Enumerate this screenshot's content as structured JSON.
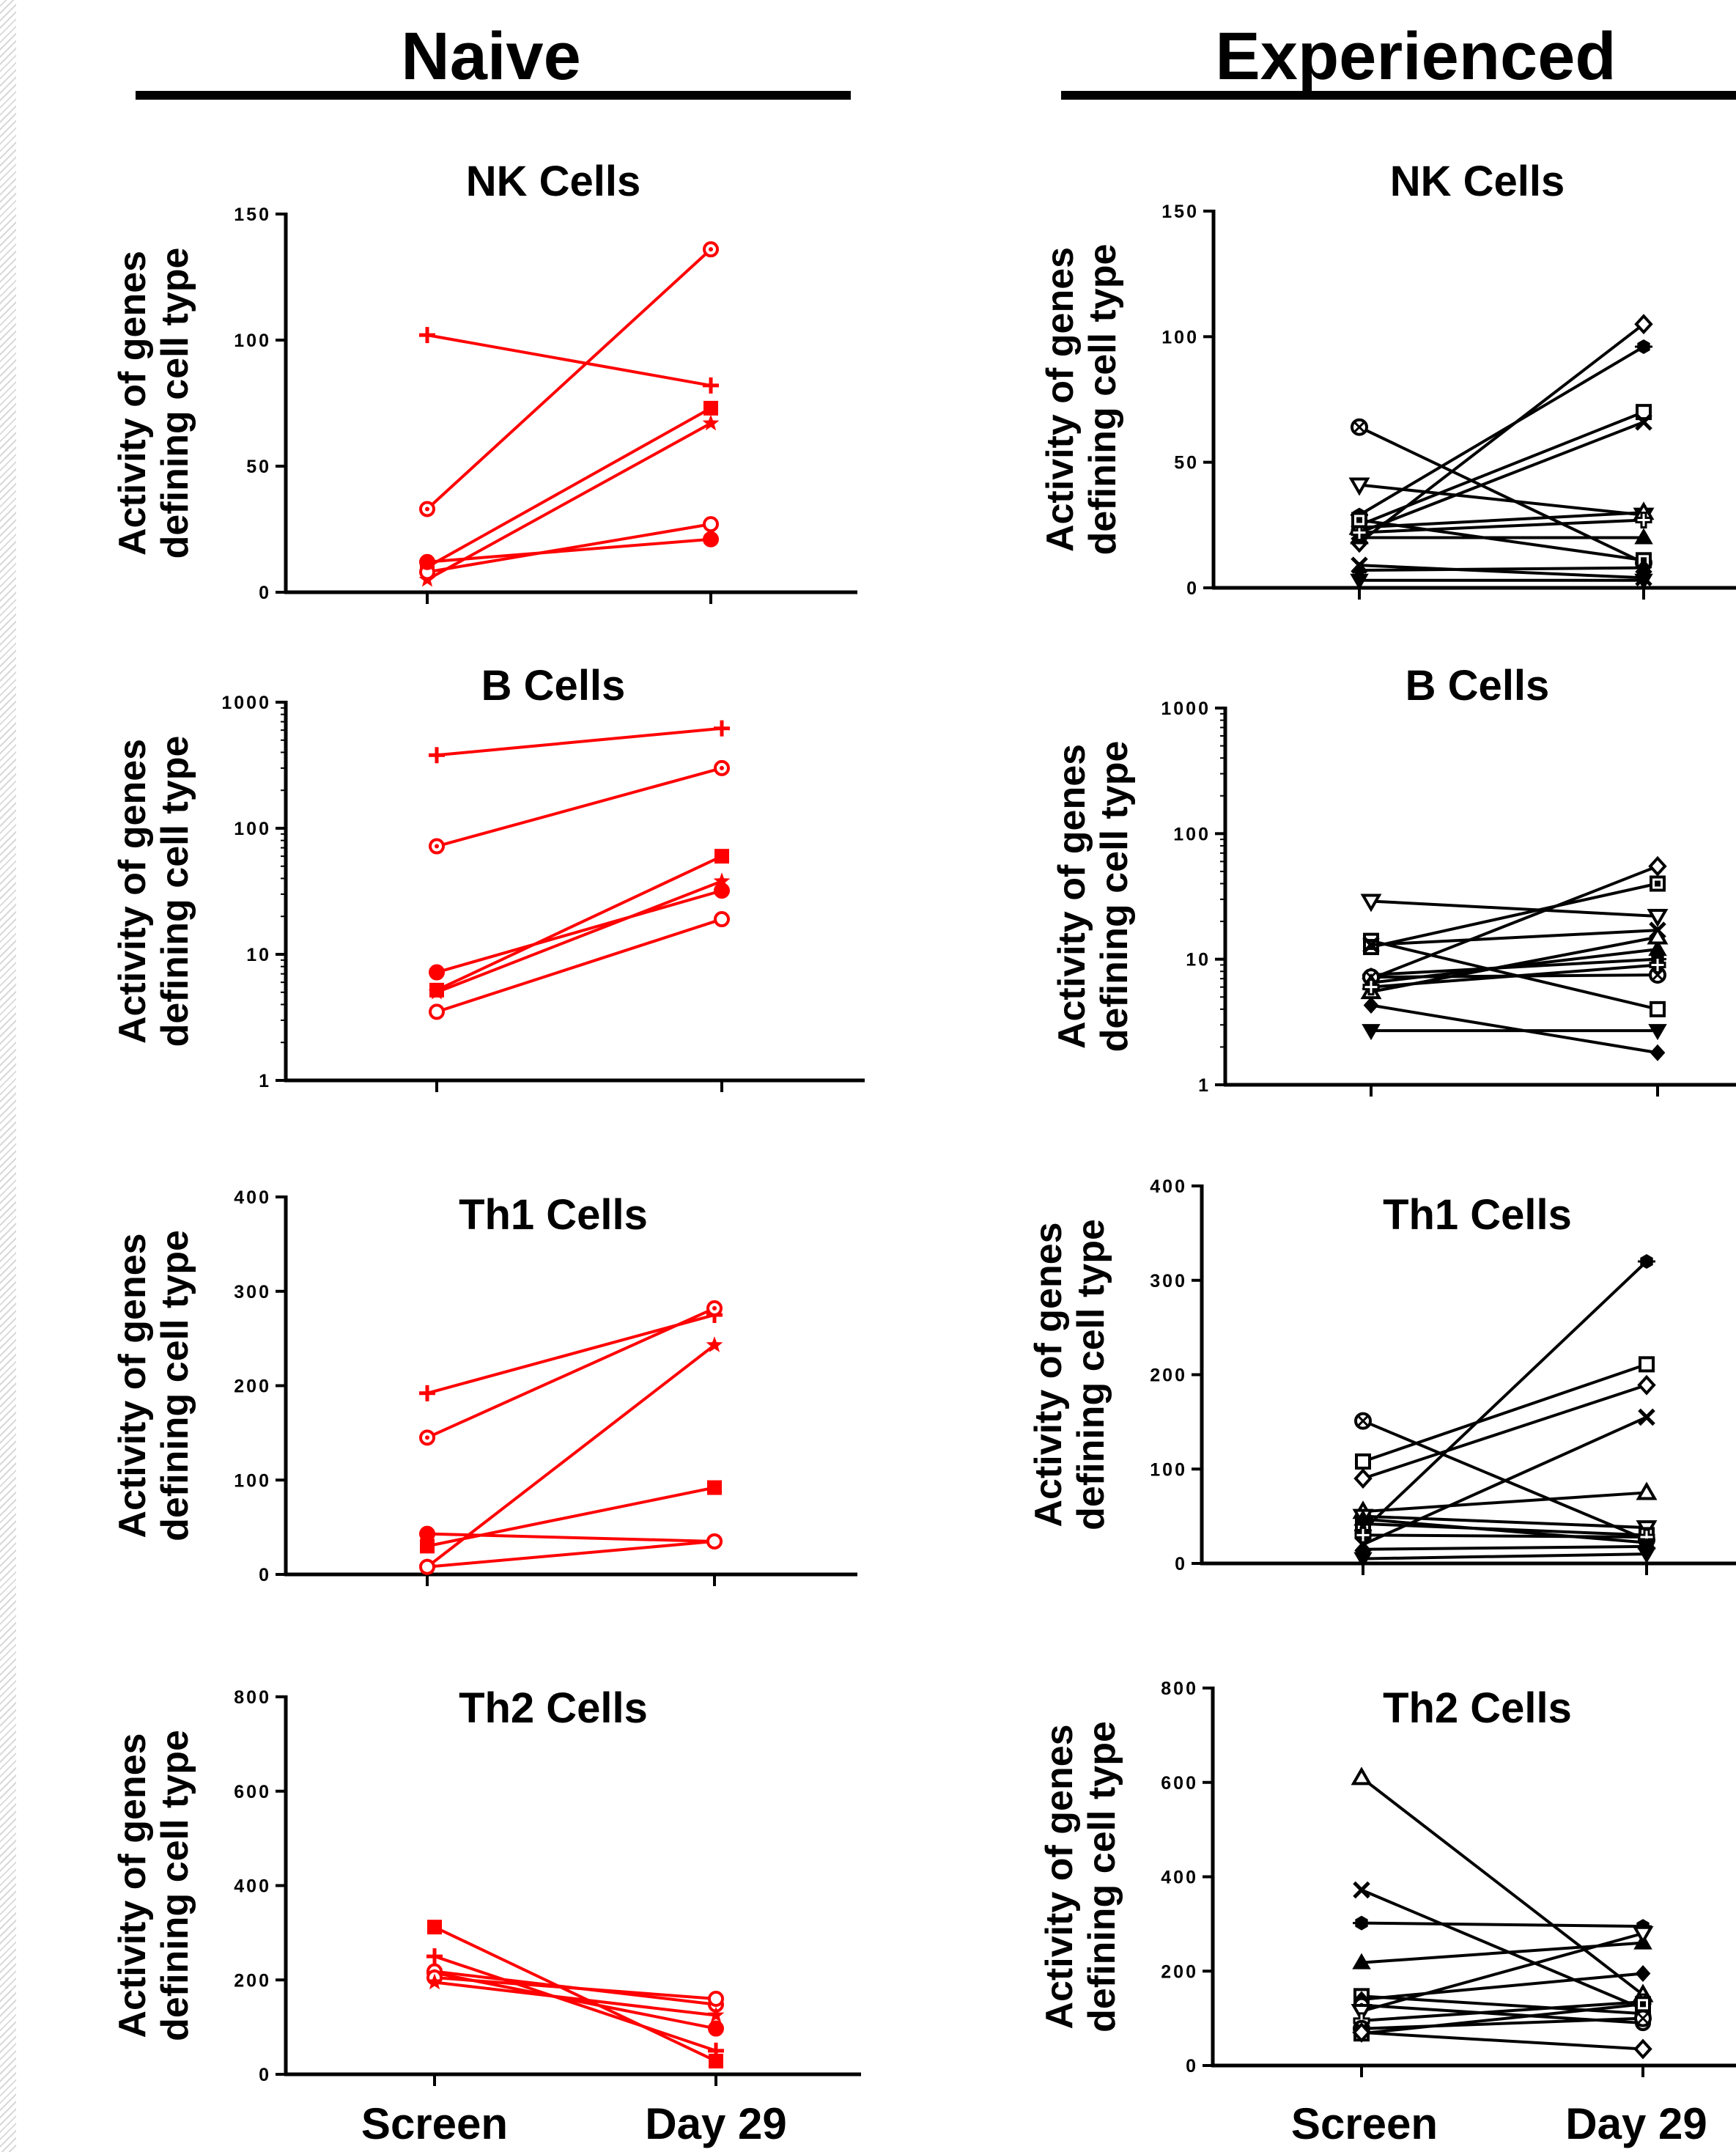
{
  "groups": {
    "naive": {
      "label": "Naive"
    },
    "experienced": {
      "label": "Experienced"
    }
  },
  "axis_label": {
    "line1": "Activity of genes",
    "line2": "defining cell type"
  },
  "x_categories": [
    "Screen",
    "Day 29"
  ],
  "colors": {
    "naive": "#ff0000",
    "experienced": "#000000"
  },
  "chart_data": [
    {
      "type": "line",
      "group": "naive",
      "title": "NK Cells",
      "scale": "linear",
      "ylim": [
        0,
        150
      ],
      "yticks": [
        0,
        50,
        100,
        150
      ],
      "categories": [
        "Screen",
        "Day 29"
      ],
      "series": [
        {
          "marker": "plus",
          "values": [
            102,
            82
          ]
        },
        {
          "marker": "circle-dot-open",
          "values": [
            33,
            136
          ]
        },
        {
          "marker": "square-filled",
          "values": [
            10,
            73
          ]
        },
        {
          "marker": "star",
          "values": [
            5,
            67
          ]
        },
        {
          "marker": "circle-open",
          "values": [
            8,
            27
          ]
        },
        {
          "marker": "circle-filled",
          "values": [
            12,
            21
          ]
        }
      ]
    },
    {
      "type": "line",
      "group": "experienced",
      "title": "NK Cells",
      "scale": "linear",
      "ylim": [
        0,
        150
      ],
      "yticks": [
        0,
        50,
        100,
        150
      ],
      "categories": [
        "Screen",
        "Day 29"
      ],
      "series": [
        {
          "marker": "circle-x",
          "values": [
            64,
            10
          ]
        },
        {
          "marker": "triangle-down-open",
          "values": [
            41,
            29
          ]
        },
        {
          "marker": "diamond-open",
          "values": [
            18,
            105
          ]
        },
        {
          "marker": "hex-filled",
          "values": [
            29,
            96
          ]
        },
        {
          "marker": "square-open",
          "values": [
            25,
            70
          ]
        },
        {
          "marker": "x",
          "values": [
            22,
            66
          ]
        },
        {
          "marker": "triangle-open",
          "values": [
            24,
            30
          ]
        },
        {
          "marker": "triangle-filled",
          "values": [
            20,
            20
          ]
        },
        {
          "marker": "plus-open",
          "values": [
            22,
            27
          ]
        },
        {
          "marker": "square-dot-open",
          "values": [
            27,
            11
          ]
        },
        {
          "marker": "x",
          "values": [
            9,
            4
          ]
        },
        {
          "marker": "triangle-down-filled",
          "values": [
            3,
            3
          ]
        },
        {
          "marker": "diamond-filled",
          "values": [
            7,
            8
          ]
        }
      ]
    },
    {
      "type": "line",
      "group": "naive",
      "title": "B Cells",
      "scale": "log",
      "ylim": [
        1,
        1000
      ],
      "yticks": [
        1,
        10,
        100,
        1000
      ],
      "categories": [
        "Screen",
        "Day 29"
      ],
      "series": [
        {
          "marker": "plus",
          "values": [
            380,
            620
          ]
        },
        {
          "marker": "circle-dot-open",
          "values": [
            72,
            300
          ]
        },
        {
          "marker": "square-filled",
          "values": [
            5.2,
            60
          ]
        },
        {
          "marker": "star",
          "values": [
            5.0,
            38
          ]
        },
        {
          "marker": "circle-filled",
          "values": [
            7.2,
            32
          ]
        },
        {
          "marker": "circle-open",
          "values": [
            3.5,
            19
          ]
        }
      ]
    },
    {
      "type": "line",
      "group": "experienced",
      "title": "B Cells",
      "scale": "log",
      "ylim": [
        1,
        1000
      ],
      "yticks": [
        1,
        10,
        100,
        1000
      ],
      "categories": [
        "Screen",
        "Day 29"
      ],
      "series": [
        {
          "marker": "triangle-down-open",
          "values": [
            29,
            22
          ]
        },
        {
          "marker": "square-open",
          "values": [
            14,
            4
          ]
        },
        {
          "marker": "square-dot-open",
          "values": [
            12.5,
            40
          ]
        },
        {
          "marker": "x",
          "values": [
            13,
            17
          ]
        },
        {
          "marker": "diamond-open",
          "values": [
            7,
            55
          ]
        },
        {
          "marker": "hex-filled",
          "values": [
            7.5,
            10
          ]
        },
        {
          "marker": "circle-x",
          "values": [
            7.2,
            7.5
          ]
        },
        {
          "marker": "triangle-filled",
          "values": [
            6.5,
            12
          ]
        },
        {
          "marker": "triangle-open",
          "values": [
            5.5,
            15
          ]
        },
        {
          "marker": "plus-open",
          "values": [
            6,
            9
          ]
        },
        {
          "marker": "diamond-filled",
          "values": [
            4.3,
            1.8
          ]
        },
        {
          "marker": "triangle-down-filled",
          "values": [
            2.7,
            2.7
          ]
        }
      ]
    },
    {
      "type": "line",
      "group": "naive",
      "title": "Th1 Cells",
      "scale": "linear",
      "ylim": [
        0,
        400
      ],
      "yticks": [
        0,
        100,
        200,
        300,
        400
      ],
      "categories": [
        "Screen",
        "Day 29"
      ],
      "series": [
        {
          "marker": "plus",
          "values": [
            192,
            275
          ]
        },
        {
          "marker": "circle-dot-open",
          "values": [
            145,
            282
          ]
        },
        {
          "marker": "star",
          "values": [
            8,
            243
          ]
        },
        {
          "marker": "square-filled",
          "values": [
            30,
            92
          ]
        },
        {
          "marker": "circle-filled",
          "values": [
            43,
            35
          ]
        },
        {
          "marker": "circle-open",
          "values": [
            8,
            35
          ]
        }
      ]
    },
    {
      "type": "line",
      "group": "experienced",
      "title": "Th1 Cells",
      "scale": "linear",
      "ylim": [
        0,
        400
      ],
      "yticks": [
        0,
        100,
        200,
        300,
        400
      ],
      "categories": [
        "Screen",
        "Day 29"
      ],
      "series": [
        {
          "marker": "circle-x",
          "values": [
            151,
            25
          ]
        },
        {
          "marker": "square-open",
          "values": [
            108,
            211
          ]
        },
        {
          "marker": "diamond-open",
          "values": [
            90,
            189
          ]
        },
        {
          "marker": "x",
          "values": [
            20,
            155
          ]
        },
        {
          "marker": "hex-filled",
          "values": [
            35,
            320
          ]
        },
        {
          "marker": "triangle-open",
          "values": [
            55,
            75
          ]
        },
        {
          "marker": "triangle-down-open",
          "values": [
            50,
            38
          ]
        },
        {
          "marker": "square-dot-open",
          "values": [
            42,
            30
          ]
        },
        {
          "marker": "triangle-filled",
          "values": [
            47,
            22
          ]
        },
        {
          "marker": "plus-open",
          "values": [
            30,
            28
          ]
        },
        {
          "marker": "diamond-filled",
          "values": [
            15,
            18
          ]
        },
        {
          "marker": "triangle-down-filled",
          "values": [
            5,
            10
          ]
        }
      ]
    },
    {
      "type": "line",
      "group": "naive",
      "title": "Th2 Cells",
      "scale": "linear",
      "ylim": [
        0,
        800
      ],
      "yticks": [
        0,
        200,
        400,
        600,
        800
      ],
      "categories": [
        "Screen",
        "Day 29"
      ],
      "series": [
        {
          "marker": "square-filled",
          "values": [
            312,
            28
          ]
        },
        {
          "marker": "plus",
          "values": [
            250,
            50
          ]
        },
        {
          "marker": "circle-filled",
          "values": [
            215,
            97
          ]
        },
        {
          "marker": "circle-dot-open",
          "values": [
            218,
            148
          ]
        },
        {
          "marker": "circle-open",
          "values": [
            205,
            160
          ]
        },
        {
          "marker": "star",
          "values": [
            195,
            125
          ]
        }
      ]
    },
    {
      "type": "line",
      "group": "experienced",
      "title": "Th2 Cells",
      "scale": "linear",
      "ylim": [
        0,
        800
      ],
      "yticks": [
        0,
        200,
        400,
        600,
        800
      ],
      "categories": [
        "Screen",
        "Day 29"
      ],
      "series": [
        {
          "marker": "triangle-open",
          "values": [
            610,
            150
          ]
        },
        {
          "marker": "x",
          "values": [
            372,
            120
          ]
        },
        {
          "marker": "hex-filled",
          "values": [
            302,
            295
          ]
        },
        {
          "marker": "triangle-filled",
          "values": [
            218,
            260
          ]
        },
        {
          "marker": "square-open",
          "values": [
            147,
            110
          ]
        },
        {
          "marker": "diamond-filled",
          "values": [
            140,
            195
          ]
        },
        {
          "marker": "circle-dot-open",
          "values": [
            128,
            90
          ]
        },
        {
          "marker": "triangle-down-open",
          "values": [
            115,
            280
          ]
        },
        {
          "marker": "plus-open",
          "values": [
            95,
            135
          ]
        },
        {
          "marker": "circle-x",
          "values": [
            78,
            100
          ]
        },
        {
          "marker": "square-dot-open",
          "values": [
            68,
            130
          ]
        },
        {
          "marker": "diamond-open",
          "values": [
            70,
            35
          ]
        }
      ]
    }
  ]
}
